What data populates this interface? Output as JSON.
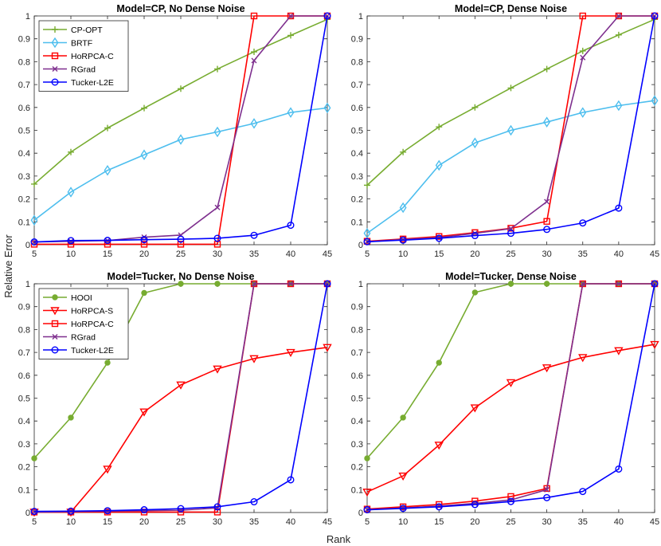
{
  "figure": {
    "xlabel": "Rank",
    "ylabel": "Relative Error"
  },
  "series_styles": {
    "CP-OPT": {
      "color": "#77AC30",
      "marker": "plus"
    },
    "BRTF": {
      "color": "#4DBEEE",
      "marker": "diamond"
    },
    "HoRPCA-C": {
      "color": "#FF0000",
      "marker": "square"
    },
    "HoRPCA-S": {
      "color": "#FF0000",
      "marker": "triangle-down"
    },
    "RGrad": {
      "color": "#7E2F8E",
      "marker": "x"
    },
    "Tucker-L2E": {
      "color": "#0000FF",
      "marker": "circle"
    },
    "HOOI": {
      "color": "#77AC30",
      "marker": "dot"
    }
  },
  "chart_data": [
    {
      "type": "line",
      "title": "Model=CP, No Dense Noise",
      "xlabel": "",
      "ylabel": "",
      "x": [
        5,
        10,
        15,
        20,
        25,
        30,
        35,
        40,
        45
      ],
      "xlim": [
        5,
        45
      ],
      "ylim": [
        0,
        1
      ],
      "xticks": [
        "5",
        "10",
        "15",
        "20",
        "25",
        "30",
        "35",
        "40",
        "45"
      ],
      "yticks": [
        "0",
        "0.1",
        "0.2",
        "0.3",
        "0.4",
        "0.5",
        "0.6",
        "0.7",
        "0.8",
        "0.9",
        "1"
      ],
      "legend_position": "top-left",
      "series": [
        {
          "name": "CP-OPT",
          "values": [
            0.265,
            0.405,
            0.51,
            0.597,
            0.682,
            0.768,
            0.843,
            0.915,
            0.985
          ]
        },
        {
          "name": "BRTF",
          "values": [
            0.107,
            0.23,
            0.325,
            0.393,
            0.46,
            0.493,
            0.53,
            0.578,
            0.598
          ]
        },
        {
          "name": "HoRPCA-C",
          "values": [
            0.002,
            0.002,
            0.002,
            0.002,
            0.002,
            0.002,
            1.0,
            1.0,
            1.0
          ]
        },
        {
          "name": "RGrad",
          "values": [
            0.012,
            0.015,
            0.018,
            0.033,
            0.042,
            0.163,
            0.805,
            1.0,
            1.0
          ]
        },
        {
          "name": "Tucker-L2E",
          "values": [
            0.012,
            0.018,
            0.019,
            0.022,
            0.024,
            0.028,
            0.041,
            0.085,
            1.0
          ]
        }
      ]
    },
    {
      "type": "line",
      "title": "Model=CP, Dense Noise",
      "xlabel": "",
      "ylabel": "",
      "x": [
        5,
        10,
        15,
        20,
        25,
        30,
        35,
        40,
        45
      ],
      "xlim": [
        5,
        45
      ],
      "ylim": [
        0,
        1
      ],
      "xticks": [
        "5",
        "10",
        "15",
        "20",
        "25",
        "30",
        "35",
        "40",
        "45"
      ],
      "yticks": [
        "0",
        "0.1",
        "0.2",
        "0.3",
        "0.4",
        "0.5",
        "0.6",
        "0.7",
        "0.8",
        "0.9",
        "1"
      ],
      "legend_position": "none",
      "series": [
        {
          "name": "CP-OPT",
          "values": [
            0.26,
            0.405,
            0.515,
            0.6,
            0.685,
            0.768,
            0.847,
            0.917,
            0.985
          ]
        },
        {
          "name": "BRTF",
          "values": [
            0.05,
            0.162,
            0.347,
            0.445,
            0.5,
            0.536,
            0.578,
            0.608,
            0.63
          ]
        },
        {
          "name": "HoRPCA-C",
          "values": [
            0.015,
            0.025,
            0.036,
            0.053,
            0.072,
            0.102,
            1.0,
            1.0,
            1.0
          ]
        },
        {
          "name": "RGrad",
          "values": [
            0.013,
            0.023,
            0.031,
            0.05,
            0.07,
            0.188,
            0.818,
            1.0,
            1.0
          ]
        },
        {
          "name": "Tucker-L2E",
          "values": [
            0.013,
            0.02,
            0.028,
            0.04,
            0.05,
            0.067,
            0.095,
            0.16,
            1.0
          ]
        }
      ]
    },
    {
      "type": "line",
      "title": "Model=Tucker, No Dense Noise",
      "xlabel": "",
      "ylabel": "",
      "x": [
        5,
        10,
        15,
        20,
        25,
        30,
        35,
        40,
        45
      ],
      "xlim": [
        5,
        45
      ],
      "ylim": [
        0,
        1
      ],
      "xticks": [
        "5",
        "10",
        "15",
        "20",
        "25",
        "30",
        "35",
        "40",
        "45"
      ],
      "yticks": [
        "0",
        "0.1",
        "0.2",
        "0.3",
        "0.4",
        "0.5",
        "0.6",
        "0.7",
        "0.8",
        "0.9",
        "1"
      ],
      "legend_position": "top-left",
      "series": [
        {
          "name": "HOOI",
          "values": [
            0.237,
            0.415,
            0.655,
            0.96,
            1.0,
            1.0,
            1.0,
            1.0,
            1.0
          ]
        },
        {
          "name": "HoRPCA-S",
          "values": [
            0.002,
            0.002,
            0.19,
            0.44,
            0.558,
            0.628,
            0.673,
            0.7,
            0.722
          ]
        },
        {
          "name": "HoRPCA-C",
          "values": [
            0.002,
            0.002,
            0.002,
            0.002,
            0.002,
            0.002,
            1.0,
            1.0,
            1.0
          ]
        },
        {
          "name": "RGrad",
          "values": [
            0.002,
            0.004,
            0.006,
            0.008,
            0.01,
            0.02,
            1.0,
            1.0,
            1.0
          ]
        },
        {
          "name": "Tucker-L2E",
          "values": [
            0.005,
            0.006,
            0.008,
            0.012,
            0.017,
            0.025,
            0.047,
            0.143,
            1.0
          ]
        }
      ]
    },
    {
      "type": "line",
      "title": "Model=Tucker, Dense Noise",
      "xlabel": "",
      "ylabel": "",
      "x": [
        5,
        10,
        15,
        20,
        25,
        30,
        35,
        40,
        45
      ],
      "xlim": [
        5,
        45
      ],
      "ylim": [
        0,
        1
      ],
      "xticks": [
        "5",
        "10",
        "15",
        "20",
        "25",
        "30",
        "35",
        "40",
        "45"
      ],
      "yticks": [
        "0",
        "0.1",
        "0.2",
        "0.3",
        "0.4",
        "0.5",
        "0.6",
        "0.7",
        "0.8",
        "0.9",
        "1"
      ],
      "legend_position": "none",
      "series": [
        {
          "name": "HOOI",
          "values": [
            0.237,
            0.415,
            0.655,
            0.962,
            1.0,
            1.0,
            1.0,
            1.0,
            1.0
          ]
        },
        {
          "name": "HoRPCA-S",
          "values": [
            0.09,
            0.16,
            0.295,
            0.458,
            0.568,
            0.633,
            0.678,
            0.708,
            0.735
          ]
        },
        {
          "name": "HoRPCA-C",
          "values": [
            0.015,
            0.025,
            0.035,
            0.05,
            0.07,
            0.105,
            1.0,
            1.0,
            1.0
          ]
        },
        {
          "name": "RGrad",
          "values": [
            0.012,
            0.02,
            0.028,
            0.04,
            0.055,
            0.1,
            1.0,
            1.0,
            1.0
          ]
        },
        {
          "name": "Tucker-L2E",
          "values": [
            0.012,
            0.018,
            0.025,
            0.035,
            0.048,
            0.065,
            0.092,
            0.19,
            1.0
          ]
        }
      ]
    }
  ]
}
